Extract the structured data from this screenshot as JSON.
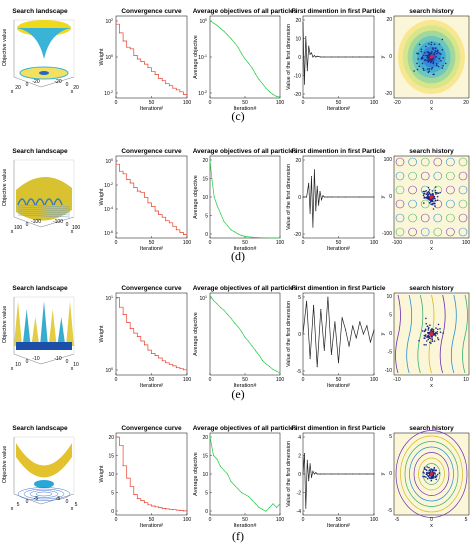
{
  "subfigure_labels": [
    "(c)",
    "(d)",
    "(e)",
    "(f)"
  ],
  "colors": {
    "convergence": "#e8402c",
    "average": "#22cc44",
    "first_dim": "#222222",
    "particles": "#1a2a88",
    "best": "#e0203a"
  },
  "chart_data": [
    {
      "row": "(c)",
      "type": "panel-row",
      "landscape": {
        "title": "Search landscape",
        "zlabel": "Objective value",
        "xlabel": "x",
        "ylabel": "x",
        "x_ticks": [
          "-20",
          "0",
          "20"
        ],
        "y_ticks": [
          "20",
          "0",
          "-20"
        ],
        "shape": "funnel"
      },
      "convergence": {
        "type": "line",
        "title": "Convergence curve",
        "xlabel": "Iteration#",
        "ylabel": "Weight",
        "yscale": "log",
        "xlim": [
          0,
          100
        ],
        "ylim": [
          0.01,
          100
        ],
        "x_ticks": [
          "0",
          "50",
          "100"
        ],
        "y_tick_labels": [
          "10",
          "10",
          "10"
        ],
        "y_tick_exponents": [
          "2",
          "0",
          "-2"
        ],
        "x": [
          0,
          5,
          10,
          15,
          20,
          25,
          30,
          35,
          40,
          45,
          50,
          55,
          60,
          65,
          70,
          75,
          80,
          85,
          90,
          95,
          100
        ],
        "y": [
          40,
          15,
          6,
          3,
          2.5,
          1.2,
          0.8,
          0.6,
          0.45,
          0.3,
          0.2,
          0.14,
          0.09,
          0.07,
          0.05,
          0.04,
          0.03,
          0.025,
          0.02,
          0.015,
          0.012
        ]
      },
      "average": {
        "type": "line",
        "title": "Average objectives of all particles",
        "xlabel": "Iteration#",
        "ylabel": "Average objective",
        "yscale": "log",
        "xlim": [
          0,
          100
        ],
        "ylim": [
          0.01,
          100
        ],
        "x_ticks": [
          "0",
          "50",
          "100"
        ],
        "y_tick_labels": [
          "10",
          "10",
          "10"
        ],
        "y_tick_exponents": [
          "0",
          "-1",
          "-2"
        ],
        "x": [
          0,
          5,
          10,
          15,
          20,
          25,
          30,
          35,
          40,
          45,
          50,
          55,
          60,
          65,
          70,
          75,
          80,
          85,
          90,
          95,
          100
        ],
        "y": [
          60,
          45,
          35,
          25,
          18,
          12,
          8,
          5,
          3,
          1.5,
          0.8,
          0.5,
          0.3,
          0.15,
          0.08,
          0.05,
          0.03,
          0.02,
          0.015,
          0.012,
          0.011
        ]
      },
      "first_dim": {
        "type": "line",
        "title": "First dimention in first Particle",
        "xlabel": "Iteration#",
        "ylabel": "Value of the first dimension",
        "xlim": [
          0,
          100
        ],
        "ylim": [
          -30,
          30
        ],
        "x_ticks": [
          "0",
          "50",
          "100"
        ],
        "y_ticks": [
          "20",
          "10",
          "0",
          "-10",
          "-20"
        ],
        "x": [
          0,
          2,
          4,
          6,
          8,
          10,
          12,
          14,
          16,
          18,
          20,
          25,
          30,
          40,
          50,
          60,
          70,
          80,
          90,
          100
        ],
        "y": [
          25,
          -20,
          15,
          -10,
          8,
          2,
          3,
          0,
          1,
          0,
          0.5,
          0,
          0,
          0,
          0,
          0,
          0,
          0,
          0,
          0
        ]
      },
      "history": {
        "type": "scatter",
        "title": "search history",
        "xlabel": "x",
        "ylabel": "y",
        "xlim": [
          -30,
          30
        ],
        "ylim": [
          -30,
          30
        ],
        "x_ticks": [
          "-20",
          "0",
          "20"
        ],
        "y_ticks": [
          "20",
          "0",
          "-20"
        ],
        "contour": "rings",
        "spread": 14
      }
    },
    {
      "row": "(d)",
      "type": "panel-row",
      "landscape": {
        "title": "Search landscape",
        "zlabel": "Objective value",
        "xlabel": "x",
        "ylabel": "x",
        "x_ticks": [
          "-100",
          "0",
          "100"
        ],
        "y_ticks": [
          "100",
          "0",
          "-100"
        ],
        "shape": "ripple"
      },
      "convergence": {
        "type": "line",
        "title": "Convergence curve",
        "xlabel": "Iteration#",
        "ylabel": "Weight",
        "yscale": "log",
        "xlim": [
          0,
          100
        ],
        "ylim": [
          1e-06,
          10
        ],
        "x_ticks": [
          "0",
          "50",
          "100"
        ],
        "y_tick_labels": [
          "10",
          "10",
          "10",
          "10"
        ],
        "y_tick_exponents": [
          "0",
          "-2",
          "-4",
          "-6"
        ],
        "x": [
          0,
          5,
          10,
          15,
          20,
          25,
          30,
          35,
          40,
          45,
          50,
          55,
          60,
          65,
          70,
          75,
          80,
          85,
          90,
          95,
          100
        ],
        "y": [
          2,
          0.5,
          0.3,
          0.1,
          0.05,
          0.02,
          0.01,
          0.008,
          0.003,
          0.001,
          0.0005,
          0.0002,
          0.0001,
          6e-05,
          3e-05,
          2e-05,
          1e-05,
          5e-06,
          3e-06,
          2e-06,
          1.5e-06
        ]
      },
      "average": {
        "type": "line",
        "title": "Average objectives of all particles",
        "xlabel": "Iteration#",
        "ylabel": "Average objective",
        "xlim": [
          0,
          100
        ],
        "ylim": [
          0,
          20
        ],
        "x_ticks": [
          "0",
          "50",
          "100"
        ],
        "y_ticks": [
          "20",
          "15",
          "10",
          "5",
          "0"
        ],
        "x": [
          0,
          3,
          6,
          10,
          15,
          20,
          25,
          30,
          35,
          40,
          45,
          50,
          60,
          70,
          80,
          90,
          100
        ],
        "y": [
          19,
          14,
          10,
          8,
          6,
          4,
          3,
          2,
          1.5,
          1,
          0.6,
          0.4,
          0.2,
          0.1,
          0.05,
          0.02,
          0.01
        ]
      },
      "first_dim": {
        "type": "line",
        "title": "First dimention in first Particle",
        "xlabel": "Iteration#",
        "ylabel": "Value of the first dimension",
        "xlim": [
          0,
          100
        ],
        "ylim": [
          -30,
          30
        ],
        "x_ticks": [
          "0",
          "50",
          "100"
        ],
        "y_ticks": [
          "20",
          "0",
          "-20"
        ],
        "x": [
          0,
          5,
          8,
          10,
          12,
          14,
          16,
          18,
          20,
          22,
          24,
          26,
          28,
          30,
          35,
          40,
          50,
          60,
          80,
          100
        ],
        "y": [
          0,
          0,
          10,
          -12,
          15,
          -22,
          20,
          -10,
          8,
          -6,
          4,
          -2,
          1,
          0,
          0,
          0,
          0,
          0,
          0,
          0
        ]
      },
      "history": {
        "type": "scatter",
        "title": "search history",
        "xlabel": "x",
        "ylabel": "y",
        "xlim": [
          -100,
          100
        ],
        "ylim": [
          -100,
          100
        ],
        "x_ticks": [
          "-100",
          "0",
          "100"
        ],
        "y_ticks": [
          "100",
          "0",
          "-100"
        ],
        "contour": "grid",
        "spread": 25
      }
    },
    {
      "row": "(e)",
      "type": "panel-row",
      "landscape": {
        "title": "Search landscape",
        "zlabel": "Objective value",
        "xlabel": "x",
        "ylabel": "x",
        "x_ticks": [
          "-10",
          "0",
          "10"
        ],
        "y_ticks": [
          "10",
          "0",
          "-10"
        ],
        "shape": "spikes"
      },
      "convergence": {
        "type": "line",
        "title": "Convergence curve",
        "xlabel": "Iteration#",
        "ylabel": "Weight",
        "yscale": "log",
        "xlim": [
          0,
          100
        ],
        "ylim": [
          0.1,
          20
        ],
        "x_ticks": [
          "0",
          "50",
          "100"
        ],
        "y_tick_labels": [
          "10",
          "10"
        ],
        "y_tick_exponents": [
          "1",
          "0"
        ],
        "x": [
          0,
          5,
          10,
          15,
          20,
          25,
          30,
          35,
          40,
          45,
          50,
          55,
          60,
          65,
          70,
          75,
          80,
          85,
          90,
          95,
          100
        ],
        "y": [
          15,
          8,
          5,
          3,
          2,
          1.5,
          1.2,
          0.9,
          0.7,
          0.5,
          0.4,
          0.35,
          0.3,
          0.25,
          0.22,
          0.2,
          0.18,
          0.16,
          0.15,
          0.14,
          0.13
        ]
      },
      "average": {
        "type": "line",
        "title": "Average objectives of all particles",
        "xlabel": "Iteration#",
        "ylabel": "Average objective",
        "yscale": "log",
        "xlim": [
          0,
          100
        ],
        "ylim": [
          1,
          50
        ],
        "x_ticks": [
          "0",
          "50",
          "100"
        ],
        "y_tick_labels": [
          "10"
        ],
        "y_tick_exponents": [
          "1"
        ],
        "x": [
          0,
          5,
          10,
          15,
          20,
          25,
          30,
          35,
          40,
          45,
          50,
          55,
          60,
          65,
          70,
          75,
          80,
          85,
          90,
          95,
          100
        ],
        "y": [
          45,
          35,
          30,
          25,
          22,
          18,
          15,
          12,
          10,
          8,
          6,
          5,
          4,
          3.2,
          2.6,
          2,
          1.7,
          1.5,
          1.3,
          1.2,
          1.1
        ]
      },
      "first_dim": {
        "type": "line",
        "title": "First dimention in first Particle",
        "xlabel": "Iteration#",
        "ylabel": "Value of the first dimension",
        "xlim": [
          0,
          100
        ],
        "ylim": [
          -10,
          10
        ],
        "x_ticks": [
          "0",
          "50",
          "100"
        ],
        "y_ticks": [
          "5",
          "0",
          "-5"
        ],
        "x": [
          0,
          5,
          10,
          15,
          20,
          25,
          30,
          35,
          40,
          45,
          50,
          55,
          60,
          65,
          70,
          75,
          80,
          85,
          90,
          95,
          100
        ],
        "y": [
          0,
          8,
          -6,
          7,
          -8,
          6,
          -4,
          9,
          -5,
          3,
          -7,
          4,
          1,
          -3,
          2,
          -1,
          3,
          0,
          2,
          -2,
          1
        ]
      },
      "history": {
        "type": "scatter",
        "title": "search history",
        "xlabel": "x",
        "ylabel": "y",
        "xlim": [
          -10,
          10
        ],
        "ylim": [
          -10,
          10
        ],
        "x_ticks": [
          "-10",
          "0",
          "10"
        ],
        "y_ticks": [
          "10",
          "5",
          "0",
          "-5",
          "-10"
        ],
        "contour": "waves",
        "spread": 3
      }
    },
    {
      "row": "(f)",
      "type": "panel-row",
      "landscape": {
        "title": "Search landscape",
        "zlabel": "Objective value",
        "xlabel": "x",
        "ylabel": "x",
        "x_ticks": [
          "-5",
          "0",
          "5"
        ],
        "y_ticks": [
          "5",
          "0",
          "-5"
        ],
        "shape": "bowl"
      },
      "convergence": {
        "type": "line",
        "title": "Convergence curve",
        "xlabel": "Iteration#",
        "ylabel": "Weight",
        "xlim": [
          0,
          100
        ],
        "ylim": [
          0,
          20
        ],
        "x_ticks": [
          "0",
          "50",
          "100"
        ],
        "y_ticks": [
          "20",
          "15",
          "10",
          "5",
          "0"
        ],
        "x": [
          0,
          5,
          10,
          15,
          20,
          25,
          30,
          35,
          40,
          45,
          50,
          55,
          60,
          65,
          70,
          75,
          80,
          85,
          90,
          95,
          100
        ],
        "y": [
          19,
          17,
          12,
          9,
          7,
          5,
          4,
          3.5,
          3,
          2.5,
          2.2,
          2,
          1.8,
          1.6,
          1.5,
          1.4,
          1.3,
          1.2,
          1.1,
          1,
          0.9
        ]
      },
      "average": {
        "type": "line",
        "title": "Average objectives of all particles",
        "xlabel": "Iteration#",
        "ylabel": "Average objective",
        "xlim": [
          0,
          100
        ],
        "ylim": [
          0,
          22
        ],
        "x_ticks": [
          "0",
          "50",
          "100"
        ],
        "y_ticks": [
          "20",
          "15",
          "10",
          "5",
          "0"
        ],
        "x": [
          0,
          5,
          10,
          15,
          20,
          25,
          30,
          35,
          40,
          45,
          50,
          55,
          60,
          65,
          70,
          75,
          80,
          85,
          90,
          95,
          100
        ],
        "y": [
          21,
          16,
          15,
          13,
          12,
          11,
          9,
          8,
          7,
          6,
          5.5,
          5,
          4,
          3,
          2,
          1.5,
          1,
          2,
          3,
          2,
          3
        ]
      },
      "first_dim": {
        "type": "line",
        "title": "First dimention in first Particle",
        "xlabel": "Iteration#",
        "ylabel": "Value of the first dimension",
        "xlim": [
          0,
          100
        ],
        "ylim": [
          -6,
          6
        ],
        "x_ticks": [
          "0",
          "50",
          "100"
        ],
        "y_ticks": [
          "4",
          "2",
          "0",
          "-2",
          "-4"
        ],
        "x": [
          0,
          2,
          4,
          6,
          8,
          10,
          12,
          14,
          16,
          18,
          20,
          25,
          30,
          40,
          50,
          60,
          70,
          80,
          90,
          100
        ],
        "y": [
          0,
          3,
          -5,
          2,
          -1,
          1.5,
          -0.5,
          0.4,
          0,
          0.2,
          0,
          0,
          0,
          0,
          0,
          0,
          0,
          0,
          0,
          0
        ]
      },
      "history": {
        "type": "scatter",
        "title": "search history",
        "xlabel": "x",
        "ylabel": "y",
        "xlim": [
          -5,
          5
        ],
        "ylim": [
          -5,
          5
        ],
        "x_ticks": [
          "-5",
          "0",
          "5"
        ],
        "y_ticks": [
          "5",
          "0",
          "-5"
        ],
        "contour": "ellipse",
        "spread": 1
      }
    }
  ]
}
